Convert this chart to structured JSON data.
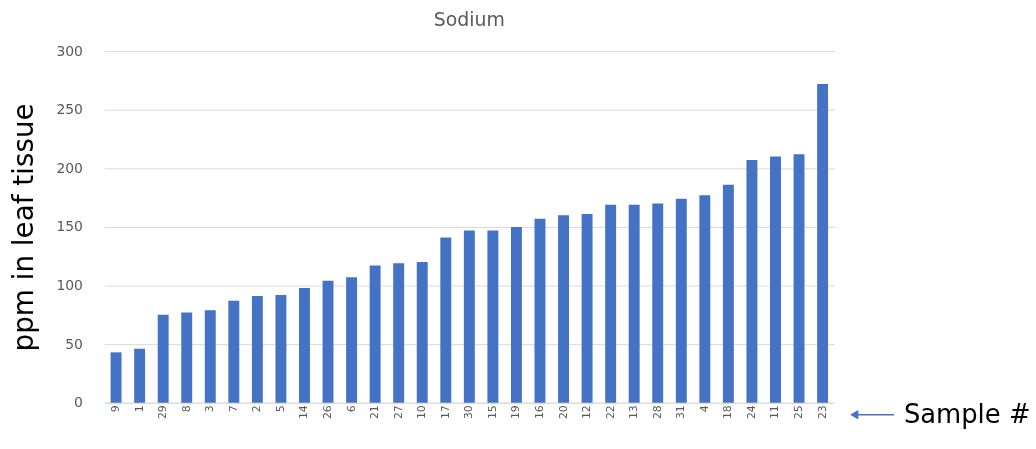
{
  "chart_data": {
    "type": "bar",
    "title": "Sodium",
    "ylabel": "ppm in leaf tissue",
    "xlabel": "Sample #",
    "categories": [
      "9",
      "1",
      "29",
      "8",
      "3",
      "7",
      "2",
      "5",
      "14",
      "26",
      "6",
      "21",
      "27",
      "10",
      "17",
      "30",
      "15",
      "19",
      "16",
      "20",
      "12",
      "22",
      "13",
      "28",
      "31",
      "4",
      "18",
      "24",
      "11",
      "25",
      "23"
    ],
    "values": [
      43,
      46,
      75,
      77,
      79,
      87,
      91,
      92,
      98,
      104,
      107,
      117,
      119,
      120,
      141,
      147,
      147,
      150,
      157,
      160,
      161,
      169,
      169,
      170,
      174,
      177,
      186,
      207,
      210,
      212,
      272
    ],
    "color": "#4472c4",
    "ylim": [
      0,
      300
    ],
    "yticks": [
      0,
      50,
      100,
      150,
      200,
      250,
      300
    ],
    "grid": "y"
  }
}
